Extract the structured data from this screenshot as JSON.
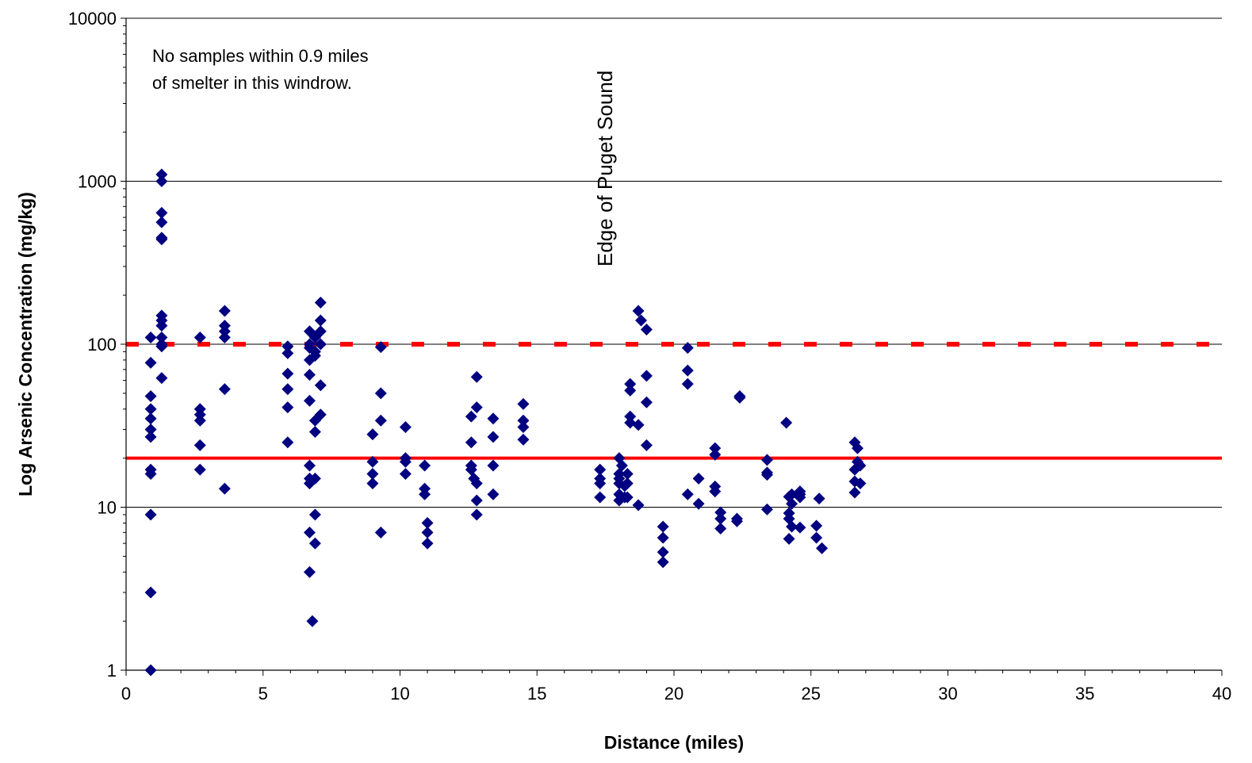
{
  "chart_data": {
    "type": "scatter",
    "title": "",
    "xlabel": "Distance (miles)",
    "ylabel": "Log Arsenic Concentration (mg/kg)",
    "xlim": [
      0,
      40
    ],
    "ylim": [
      1,
      10000
    ],
    "yscale": "log",
    "x_ticks": [
      0,
      5,
      10,
      15,
      20,
      25,
      30,
      35,
      40
    ],
    "y_ticks": [
      1,
      10,
      100,
      1000,
      10000
    ],
    "grid": "horizontal major lines",
    "marker_color": "#000080",
    "reference_lines": [
      {
        "y": 100,
        "style": "dashed",
        "color": "#ff0000"
      },
      {
        "y": 20,
        "style": "solid",
        "color": "#ff0000"
      }
    ],
    "annotations": [
      {
        "text_lines": [
          "No samples within 0.9 miles",
          "of smelter in this windrow."
        ]
      },
      {
        "text": "Edge of Puget Sound",
        "orientation": "vertical"
      }
    ],
    "points": [
      [
        0.9,
        110
      ],
      [
        0.9,
        77
      ],
      [
        0.9,
        48
      ],
      [
        0.9,
        40
      ],
      [
        0.9,
        35
      ],
      [
        0.9,
        30
      ],
      [
        0.9,
        27
      ],
      [
        0.9,
        17
      ],
      [
        0.9,
        16
      ],
      [
        0.9,
        9
      ],
      [
        0.9,
        3
      ],
      [
        0.9,
        1
      ],
      [
        1.3,
        1100
      ],
      [
        1.3,
        1000
      ],
      [
        1.3,
        640
      ],
      [
        1.3,
        560
      ],
      [
        1.3,
        450
      ],
      [
        1.3,
        440
      ],
      [
        1.3,
        150
      ],
      [
        1.3,
        140
      ],
      [
        1.3,
        130
      ],
      [
        1.3,
        110
      ],
      [
        1.3,
        100
      ],
      [
        1.3,
        97
      ],
      [
        1.3,
        62
      ],
      [
        2.7,
        110
      ],
      [
        2.7,
        40
      ],
      [
        2.7,
        37
      ],
      [
        2.7,
        34
      ],
      [
        2.7,
        24
      ],
      [
        2.7,
        17
      ],
      [
        3.6,
        160
      ],
      [
        3.6,
        130
      ],
      [
        3.6,
        120
      ],
      [
        3.6,
        110
      ],
      [
        3.6,
        53
      ],
      [
        3.6,
        13
      ],
      [
        5.9,
        97
      ],
      [
        5.9,
        88
      ],
      [
        5.9,
        66
      ],
      [
        5.9,
        53
      ],
      [
        5.9,
        41
      ],
      [
        5.9,
        25
      ],
      [
        6.7,
        120
      ],
      [
        6.7,
        100
      ],
      [
        6.7,
        95
      ],
      [
        6.7,
        80
      ],
      [
        6.7,
        65
      ],
      [
        6.7,
        45
      ],
      [
        6.7,
        18
      ],
      [
        6.7,
        15
      ],
      [
        6.7,
        14
      ],
      [
        6.7,
        7
      ],
      [
        6.7,
        4
      ],
      [
        6.9,
        110
      ],
      [
        6.9,
        90
      ],
      [
        6.9,
        85
      ],
      [
        6.9,
        34
      ],
      [
        6.9,
        29
      ],
      [
        6.9,
        15
      ],
      [
        6.9,
        9
      ],
      [
        6.9,
        6
      ],
      [
        6.8,
        2
      ],
      [
        7.1,
        180
      ],
      [
        7.1,
        140
      ],
      [
        7.1,
        120
      ],
      [
        7.1,
        100
      ],
      [
        7.1,
        56
      ],
      [
        7.1,
        37
      ],
      [
        9.0,
        28
      ],
      [
        9.0,
        19
      ],
      [
        9.0,
        16
      ],
      [
        9.0,
        14
      ],
      [
        9.3,
        96
      ],
      [
        9.3,
        50
      ],
      [
        9.3,
        34
      ],
      [
        9.3,
        7
      ],
      [
        10.2,
        31
      ],
      [
        10.2,
        20
      ],
      [
        10.2,
        19
      ],
      [
        10.2,
        16
      ],
      [
        10.9,
        18
      ],
      [
        10.9,
        13
      ],
      [
        10.9,
        12
      ],
      [
        11.0,
        8
      ],
      [
        11.0,
        7
      ],
      [
        11.0,
        6
      ],
      [
        12.6,
        36
      ],
      [
        12.6,
        25
      ],
      [
        12.6,
        18
      ],
      [
        12.6,
        17
      ],
      [
        12.7,
        15
      ],
      [
        12.8,
        63
      ],
      [
        12.8,
        41
      ],
      [
        12.8,
        14
      ],
      [
        12.8,
        11
      ],
      [
        12.8,
        9
      ],
      [
        13.4,
        35
      ],
      [
        13.4,
        27
      ],
      [
        13.4,
        18
      ],
      [
        13.4,
        12
      ],
      [
        14.5,
        43
      ],
      [
        14.5,
        34
      ],
      [
        14.5,
        31
      ],
      [
        14.5,
        26
      ],
      [
        17.3,
        17
      ],
      [
        17.3,
        15
      ],
      [
        17.3,
        14
      ],
      [
        17.3,
        11.5
      ],
      [
        18.0,
        20
      ],
      [
        18.0,
        16
      ],
      [
        18.0,
        15
      ],
      [
        18.0,
        14
      ],
      [
        18.0,
        12
      ],
      [
        18.0,
        11
      ],
      [
        18.1,
        18
      ],
      [
        18.2,
        13.5
      ],
      [
        18.2,
        11.5
      ],
      [
        18.3,
        16
      ],
      [
        18.3,
        14
      ],
      [
        18.3,
        11.5
      ],
      [
        18.4,
        57
      ],
      [
        18.4,
        52
      ],
      [
        18.4,
        36
      ],
      [
        18.4,
        33
      ],
      [
        18.7,
        32
      ],
      [
        18.7,
        10.3
      ],
      [
        18.7,
        160
      ],
      [
        18.8,
        140
      ],
      [
        19.0,
        123
      ],
      [
        19.0,
        64
      ],
      [
        19.0,
        44
      ],
      [
        19.0,
        24
      ],
      [
        19.6,
        7.6
      ],
      [
        19.6,
        6.5
      ],
      [
        19.6,
        5.3
      ],
      [
        19.6,
        4.6
      ],
      [
        20.5,
        95
      ],
      [
        20.5,
        69
      ],
      [
        20.5,
        57
      ],
      [
        20.5,
        12
      ],
      [
        20.9,
        15
      ],
      [
        20.9,
        10.5
      ],
      [
        21.5,
        23
      ],
      [
        21.5,
        21
      ],
      [
        21.5,
        13.4
      ],
      [
        21.5,
        12.5
      ],
      [
        21.7,
        9.3
      ],
      [
        21.7,
        8.5
      ],
      [
        21.7,
        7.4
      ],
      [
        22.3,
        8.5
      ],
      [
        22.3,
        8.2
      ],
      [
        22.4,
        48
      ],
      [
        22.4,
        47
      ],
      [
        23.4,
        19.5
      ],
      [
        23.4,
        16.3
      ],
      [
        23.4,
        15.8
      ],
      [
        23.4,
        9.7
      ],
      [
        24.1,
        33
      ],
      [
        24.2,
        11.6
      ],
      [
        24.2,
        9.2
      ],
      [
        24.2,
        8.5
      ],
      [
        24.2,
        6.4
      ],
      [
        24.3,
        12
      ],
      [
        24.3,
        10.5
      ],
      [
        24.3,
        7.6
      ],
      [
        24.6,
        12.5
      ],
      [
        24.6,
        12
      ],
      [
        24.6,
        11.5
      ],
      [
        24.6,
        7.5
      ],
      [
        25.2,
        7.7
      ],
      [
        25.2,
        6.5
      ],
      [
        25.3,
        11.3
      ],
      [
        25.4,
        5.6
      ],
      [
        26.6,
        25
      ],
      [
        26.6,
        17
      ],
      [
        26.6,
        14.4
      ],
      [
        26.6,
        12.3
      ],
      [
        26.7,
        23
      ],
      [
        26.7,
        19
      ],
      [
        26.8,
        18
      ],
      [
        26.8,
        14
      ]
    ]
  }
}
